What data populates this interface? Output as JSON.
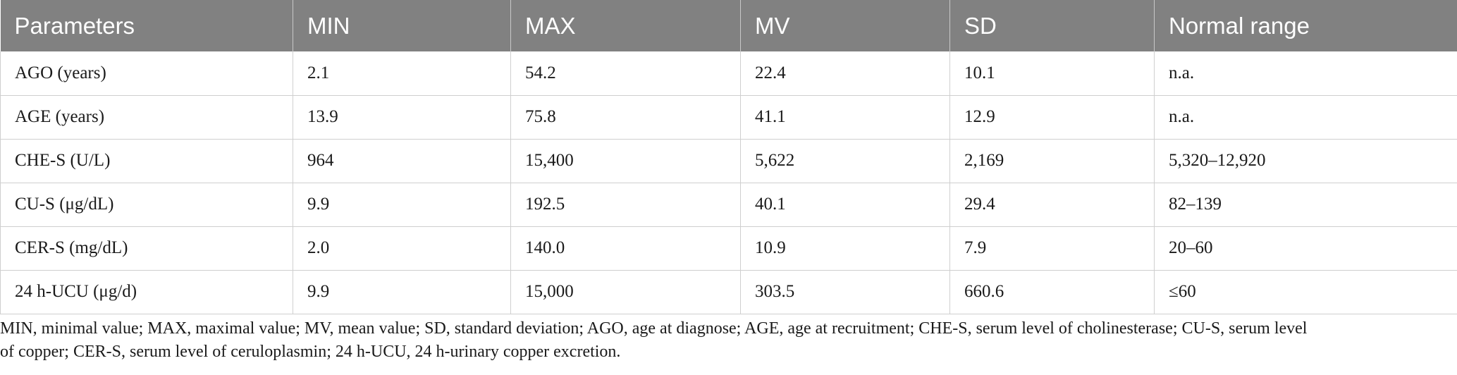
{
  "table": {
    "headers": [
      "Parameters",
      "MIN",
      "MAX",
      "MV",
      "SD",
      "Normal range"
    ],
    "rows": [
      [
        "AGO (years)",
        "2.1",
        "54.2",
        "22.4",
        "10.1",
        "n.a."
      ],
      [
        "AGE (years)",
        "13.9",
        "75.8",
        "41.1",
        "12.9",
        "n.a."
      ],
      [
        "CHE-S (U/L)",
        "964",
        "15,400",
        "5,622",
        "2,169",
        "5,320–12,920"
      ],
      [
        "CU-S (μg/dL)",
        "9.9",
        "192.5",
        "40.1",
        "29.4",
        "82–139"
      ],
      [
        "CER-S (mg/dL)",
        "2.0",
        "140.0",
        "10.9",
        "7.9",
        "20–60"
      ],
      [
        "24 h-UCU (μg/d)",
        "9.9",
        "15,000",
        "303.5",
        "660.6",
        "≤60"
      ]
    ]
  },
  "footnote": {
    "line1": "MIN, minimal value; MAX, maximal value; MV, mean value; SD, standard deviation; AGO, age at diagnose; AGE, age at recruitment; CHE-S, serum level of cholinesterase; CU-S, serum level",
    "line2": "of copper; CER-S, serum level of ceruloplasmin; 24 h-UCU, 24 h-urinary copper excretion."
  },
  "colors": {
    "header_bg": "#818181",
    "header_text": "#ffffff",
    "grid": "#cfcfcf"
  }
}
